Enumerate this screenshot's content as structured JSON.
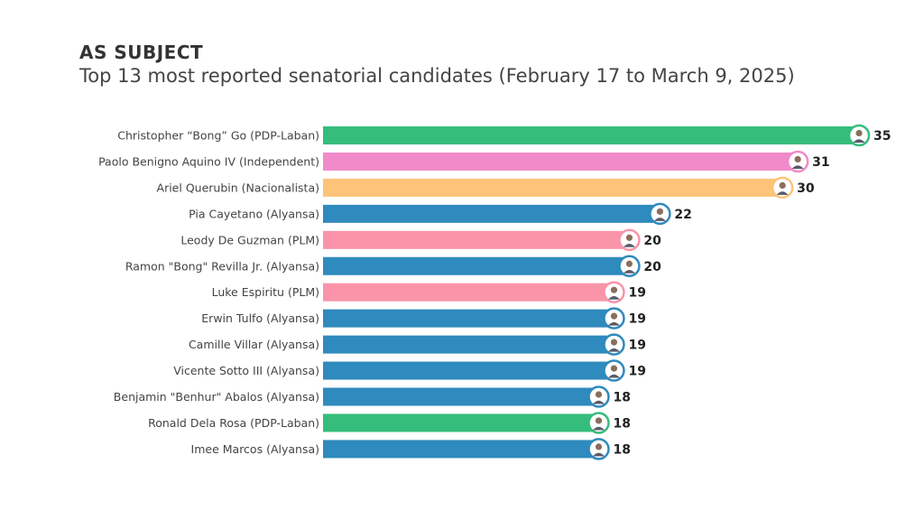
{
  "chart_data": {
    "type": "bar",
    "orientation": "horizontal",
    "title": "AS SUBJECT",
    "subtitle": "Top 13 most reported senatorial candidates (February 17 to March 9, 2025)",
    "categories": [
      "Christopher “Bong” Go (PDP-Laban)",
      "Paolo Benigno Aquino IV (Independent)",
      "Ariel Querubin (Nacionalista)",
      "Pia Cayetano (Alyansa)",
      "Leody De Guzman (PLM)",
      "Ramon \"Bong\" Revilla Jr. (Alyansa)",
      "Luke Espiritu (PLM)",
      "Erwin Tulfo (Alyansa)",
      "Camille Villar (Alyansa)",
      "Vicente Sotto III (Alyansa)",
      "Benjamin \"Benhur\" Abalos (Alyansa)",
      "Ronald Dela Rosa (PDP-Laban)",
      "Imee Marcos (Alyansa)"
    ],
    "values": [
      35,
      31,
      30,
      22,
      20,
      20,
      19,
      19,
      19,
      19,
      18,
      18,
      18
    ],
    "party_colors": {
      "PDP-Laban": "#35bd7c",
      "Independent": "#f08ac9",
      "Nacionalista": "#fdc479",
      "Alyansa": "#2f8abd",
      "PLM": "#f994a9"
    },
    "bar_parties": [
      "PDP-Laban",
      "Independent",
      "Nacionalista",
      "Alyansa",
      "PLM",
      "Alyansa",
      "PLM",
      "Alyansa",
      "Alyansa",
      "Alyansa",
      "Alyansa",
      "PDP-Laban",
      "Alyansa"
    ],
    "xlim": [
      0,
      35
    ],
    "grid": false,
    "legend": "none",
    "marker_icon": "candidate-avatar-icon"
  }
}
